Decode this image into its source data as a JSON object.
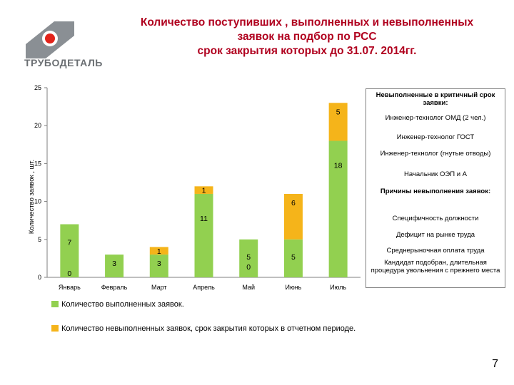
{
  "header": {
    "logo_text": "ТРУБОДЕТАЛЬ",
    "title_lines": [
      "Количество поступивших , выполненных  и невыполненных",
      "заявок на подбор по РСС",
      "срок закрытия которых до 31.07. 2014гг."
    ]
  },
  "colors": {
    "done": "#92d050",
    "not_done": "#f5b41a",
    "title": "#b0001e",
    "logo_red": "#e2231a",
    "logo_grey": "#8a8f94"
  },
  "chart_data": {
    "type": "bar",
    "stacked": true,
    "ylabel": "Количество заявок , шт.",
    "ylim": [
      0,
      25
    ],
    "yticks": [
      0,
      5,
      10,
      15,
      20,
      25
    ],
    "grid": false,
    "categories": [
      "Январь",
      "Февраль",
      "Март",
      "Апрель",
      "Май",
      "Июнь",
      "Июль"
    ],
    "series": [
      {
        "name": "Количество выполненных  заявок.",
        "values": [
          7,
          3,
          3,
          11,
          5,
          5,
          18
        ]
      },
      {
        "name": "Количество невыполненных заявок, срок закрытия которых    в отчетном периоде.",
        "values": [
          0,
          0,
          1,
          1,
          0,
          6,
          5
        ]
      }
    ],
    "label_text": {
      "done": [
        "7",
        "3",
        "3",
        "11",
        "5",
        "5",
        "18"
      ],
      "not_done": [
        "0",
        "",
        "1",
        "1",
        "0",
        "6",
        "5"
      ]
    }
  },
  "legend_box": {
    "items": [
      {
        "text": "Невыполненные в критичный срок заявки:",
        "bold": true
      },
      {
        "text": "Инженер-технолог ОМД (2 чел.)",
        "bold": false
      },
      {
        "text": "Инженер-технолог ГОСТ",
        "bold": false
      },
      {
        "text": "Инженер-технолог (гнутые отводы)",
        "bold": false
      },
      {
        "text": "Начальник ОЭП и А",
        "bold": false
      },
      {
        "text": "Причины невыполнения заявок:",
        "bold": true
      },
      {
        "text": "Специфичность должности",
        "bold": false
      },
      {
        "text": "Дефицит на рынке труда",
        "bold": false
      },
      {
        "text": "Среднерыночная оплата труда",
        "bold": false
      },
      {
        "text": "Кандидат подобран, длительная процедура увольнения с прежнего места",
        "bold": false
      }
    ]
  },
  "page_number": "7"
}
